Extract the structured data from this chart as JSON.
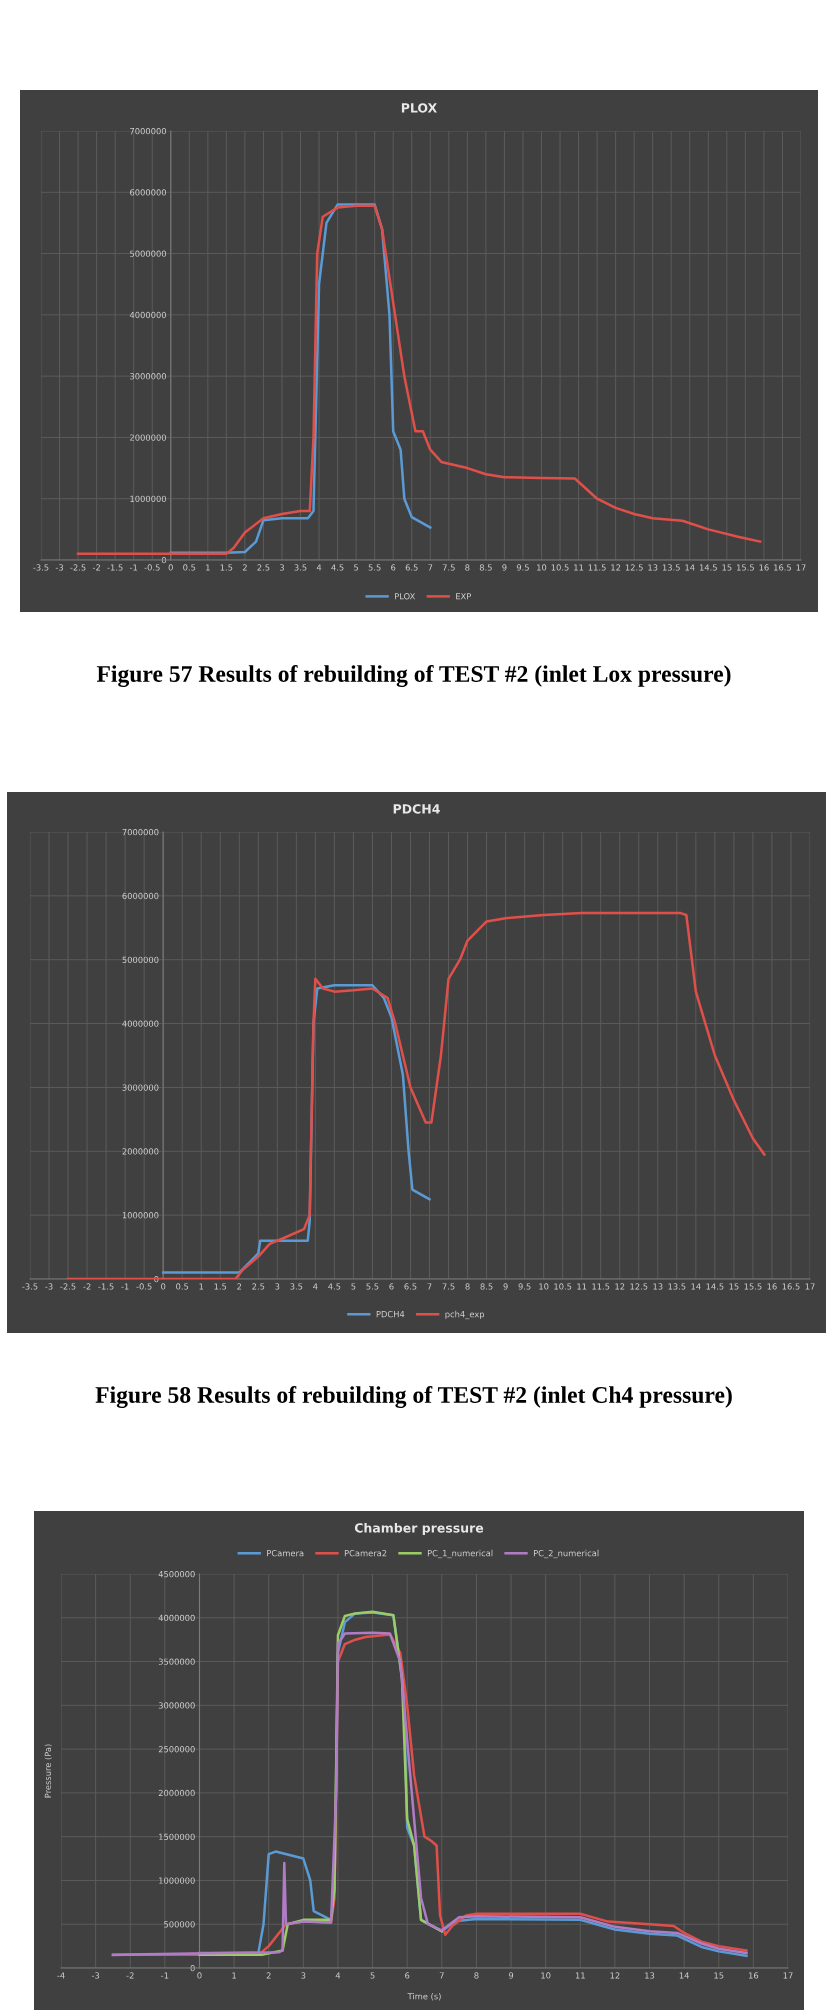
{
  "chart_data": [
    {
      "type": "line",
      "title": "PLOX",
      "xlim": [
        -3.5,
        17
      ],
      "xticks": [
        -3.5,
        -3,
        -2.5,
        -2,
        -1.5,
        -1,
        -0.5,
        0,
        0.5,
        1,
        1.5,
        2,
        2.5,
        3,
        3.5,
        4,
        4.5,
        5,
        5.5,
        6,
        6.5,
        7,
        7.5,
        8,
        8.5,
        9,
        9.5,
        10,
        10.5,
        11,
        11.5,
        12,
        12.5,
        13,
        13.5,
        14,
        14.5,
        15,
        15.5,
        16,
        16.5,
        17
      ],
      "ylim": [
        0,
        7000000
      ],
      "yticks": [
        0,
        1000000,
        2000000,
        3000000,
        4000000,
        5000000,
        6000000,
        7000000
      ],
      "grid": true,
      "legend": "bottom",
      "marker": "none",
      "line_style": "solid",
      "annotations": [
        "Figure 57 Results of rebuilding of TEST #2 (inlet Lox pressure)"
      ],
      "series": [
        {
          "name": "PLOX",
          "color": "#5b9bd5",
          "x": [
            0,
            1.5,
            2,
            2.3,
            2.5,
            3,
            3.7,
            3.85,
            4.0,
            4.2,
            4.5,
            5,
            5.5,
            5.7,
            5.9,
            6.0,
            6.2,
            6.3,
            6.5,
            7
          ],
          "values": [
            120000,
            120000,
            130000,
            300000,
            650000,
            680000,
            680000,
            800000,
            4500000,
            5500000,
            5800000,
            5800000,
            5800000,
            5400000,
            4000000,
            2100000,
            1800000,
            1000000,
            700000,
            530000
          ]
        },
        {
          "name": "EXP",
          "color": "#e0504a",
          "x": [
            -2.5,
            1.5,
            1.7,
            2,
            2.5,
            3,
            3.5,
            3.75,
            3.85,
            3.95,
            4.1,
            4.5,
            5,
            5.5,
            5.7,
            6,
            6.3,
            6.6,
            6.8,
            7,
            7.3,
            8,
            8.5,
            9,
            10,
            10.9,
            11.5,
            12,
            12.5,
            13,
            13.8,
            14.5,
            15.3,
            15.9
          ],
          "values": [
            100000,
            100000,
            200000,
            450000,
            680000,
            750000,
            800000,
            800000,
            2000000,
            5000000,
            5600000,
            5750000,
            5780000,
            5780000,
            5400000,
            4200000,
            3000000,
            2100000,
            2100000,
            1800000,
            1600000,
            1500000,
            1400000,
            1350000,
            1340000,
            1330000,
            1000000,
            850000,
            750000,
            680000,
            640000,
            500000,
            380000,
            300000
          ]
        }
      ]
    },
    {
      "type": "line",
      "title": "PDCH4",
      "xlim": [
        -3.5,
        17
      ],
      "xticks": [
        -3.5,
        -3,
        -2.5,
        -2,
        -1.5,
        -1,
        -0.5,
        0,
        0.5,
        1,
        1.5,
        2,
        2.5,
        3,
        3.5,
        4,
        4.5,
        5,
        5.5,
        6,
        6.5,
        7,
        7.5,
        8,
        8.5,
        9,
        9.5,
        10,
        10.5,
        11,
        11.5,
        12,
        12.5,
        13,
        13.5,
        14,
        14.5,
        15,
        15.5,
        16,
        16.5,
        17
      ],
      "ylim": [
        0,
        7000000
      ],
      "yticks": [
        0,
        1000000,
        2000000,
        3000000,
        4000000,
        5000000,
        6000000,
        7000000
      ],
      "grid": true,
      "legend": "bottom",
      "marker": "none",
      "line_style": "solid",
      "annotations": [
        "Figure 58 Results of rebuilding of TEST #2 (inlet Ch4 pressure)"
      ],
      "series": [
        {
          "name": "PDCH4",
          "color": "#5b9bd5",
          "x": [
            0,
            2,
            2.5,
            2.55,
            3,
            3.8,
            3.85,
            3.95,
            4.05,
            4.5,
            5.5,
            5.8,
            6,
            6.3,
            6.45,
            6.55,
            7
          ],
          "values": [
            100000,
            100000,
            400000,
            600000,
            600000,
            600000,
            900000,
            4000000,
            4550000,
            4600000,
            4600000,
            4400000,
            4100000,
            3200000,
            2000000,
            1400000,
            1250000
          ]
        },
        {
          "name": "pch4_exp",
          "color": "#e0504a",
          "x": [
            -2.5,
            1.9,
            2.1,
            2.5,
            2.8,
            3.2,
            3.7,
            3.85,
            3.95,
            4.0,
            4.2,
            4.5,
            5,
            5.5,
            5.9,
            6.1,
            6.5,
            6.9,
            7.05,
            7.3,
            7.5,
            7.8,
            8,
            8.5,
            9,
            10,
            11,
            12,
            13,
            13.6,
            13.75,
            14,
            14.5,
            15,
            15.5,
            15.8
          ],
          "values": [
            0,
            0,
            150000,
            350000,
            550000,
            650000,
            780000,
            1000000,
            4000000,
            4700000,
            4550000,
            4500000,
            4520000,
            4550000,
            4400000,
            4000000,
            3000000,
            2450000,
            2450000,
            3500000,
            4700000,
            5000000,
            5300000,
            5600000,
            5650000,
            5700000,
            5730000,
            5730000,
            5730000,
            5730000,
            5700000,
            4500000,
            3500000,
            2800000,
            2200000,
            1950000
          ]
        }
      ]
    },
    {
      "type": "line",
      "title": "Chamber pressure",
      "xlabel": "Time (s)",
      "ylabel": "Pressure (Pa)",
      "xlim": [
        -4,
        17
      ],
      "xticks": [
        -4,
        -3,
        -2,
        -1,
        0,
        1,
        2,
        3,
        4,
        5,
        6,
        7,
        8,
        9,
        10,
        11,
        12,
        13,
        14,
        15,
        16,
        17
      ],
      "ylim": [
        0,
        4500000
      ],
      "yticks": [
        0,
        500000,
        1000000,
        1500000,
        2000000,
        2500000,
        3000000,
        3500000,
        4000000,
        4500000
      ],
      "grid": true,
      "legend": "top",
      "marker": "none",
      "line_style": "solid",
      "series": [
        {
          "name": "PCamera",
          "color": "#5b9bd5",
          "x": [
            0,
            1.7,
            1.85,
            2.0,
            2.2,
            3,
            3.2,
            3.3,
            3.8,
            3.9,
            4.0,
            4.2,
            4.5,
            5,
            5.6,
            5.9,
            6.0,
            6.2,
            6.4,
            7,
            7.2,
            7.5,
            8,
            11,
            12,
            13,
            13.8,
            14.5,
            15,
            15.8
          ],
          "values": [
            170000,
            170000,
            500000,
            1300000,
            1330000,
            1250000,
            1000000,
            650000,
            550000,
            900000,
            3600000,
            3950000,
            4050000,
            4060000,
            4030000,
            3200000,
            1600000,
            1400000,
            550000,
            420000,
            480000,
            540000,
            560000,
            550000,
            440000,
            390000,
            370000,
            240000,
            190000,
            140000
          ]
        },
        {
          "name": "PCamera2",
          "color": "#e0504a",
          "x": [
            -2.5,
            1.7,
            2.0,
            2.3,
            2.5,
            3,
            3.8,
            3.9,
            4.0,
            4.2,
            4.5,
            4.8,
            5.5,
            5.8,
            6,
            6.2,
            6.5,
            6.7,
            6.85,
            6.95,
            7.1,
            7.3,
            7.7,
            8,
            11,
            11.8,
            13,
            13.7,
            14,
            14.5,
            15,
            15.8
          ],
          "values": [
            150000,
            150000,
            250000,
            400000,
            500000,
            530000,
            520000,
            800000,
            3500000,
            3700000,
            3750000,
            3780000,
            3810000,
            3600000,
            3000000,
            2200000,
            1500000,
            1450000,
            1400000,
            600000,
            380000,
            480000,
            600000,
            620000,
            620000,
            530000,
            500000,
            480000,
            400000,
            300000,
            250000,
            200000
          ]
        },
        {
          "name": "PC_1_numerical",
          "color": "#9ccc65",
          "x": [
            0,
            1.8,
            2.4,
            2.55,
            3,
            3.8,
            3.9,
            4.0,
            4.2,
            4.5,
            5,
            5.6,
            5.85,
            6.0,
            6.2,
            6.4,
            7
          ],
          "values": [
            150000,
            150000,
            200000,
            500000,
            550000,
            550000,
            900000,
            3800000,
            4020000,
            4050000,
            4070000,
            4030000,
            3300000,
            1700000,
            1400000,
            550000,
            420000
          ]
        },
        {
          "name": "PC_2_numerical",
          "color": "#b07cc6",
          "x": [
            -2.5,
            2.3,
            2.4,
            2.45,
            2.5,
            3,
            3.8,
            3.95,
            4.0,
            4.2,
            5,
            5.5,
            5.8,
            6.0,
            6.2,
            6.4,
            6.6,
            7,
            7.5,
            8,
            11,
            12,
            13,
            13.8,
            14.5,
            15,
            15.8
          ],
          "values": [
            150000,
            180000,
            200000,
            1200000,
            500000,
            530000,
            520000,
            2000000,
            3700000,
            3820000,
            3830000,
            3820000,
            3500000,
            2600000,
            1700000,
            800000,
            500000,
            430000,
            580000,
            590000,
            580000,
            470000,
            420000,
            400000,
            280000,
            220000,
            170000
          ]
        }
      ]
    }
  ]
}
